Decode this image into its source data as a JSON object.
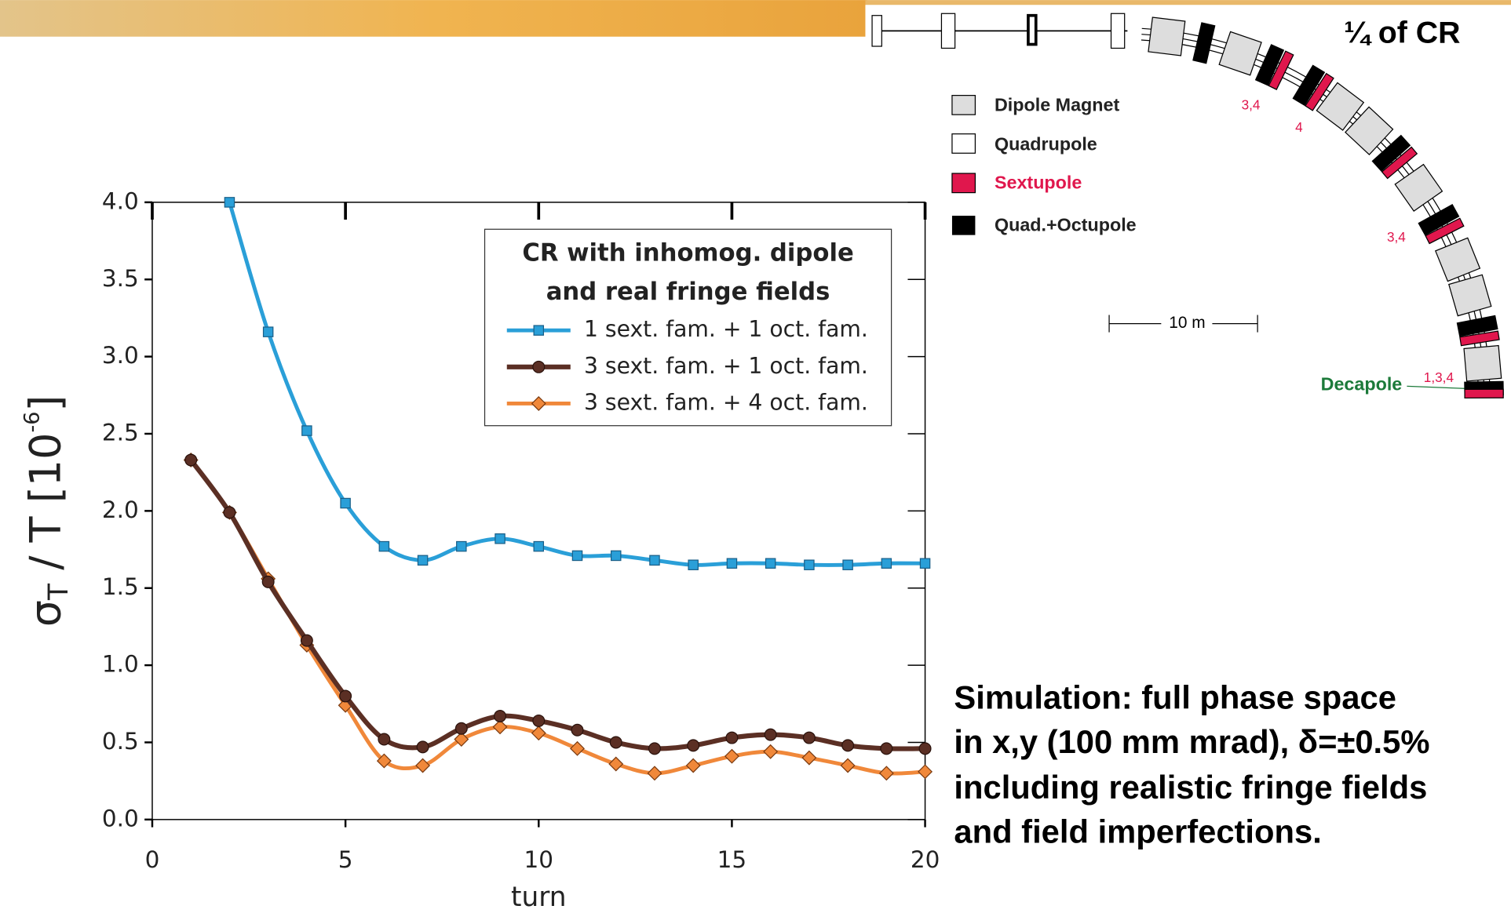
{
  "chart_data": {
    "type": "line",
    "y_label": [
      "σ",
      "T",
      " / T  [10",
      "-6",
      "]"
    ],
    "x_label": "turn",
    "x": [
      1,
      2,
      3,
      4,
      5,
      6,
      7,
      8,
      9,
      10,
      11,
      12,
      13,
      14,
      15,
      16,
      17,
      18,
      19,
      20
    ],
    "series": [
      {
        "name": "1 sext. fam. + 1 oct. fam.",
        "color": "#2a9fd8",
        "marker": "square",
        "values": [
          null,
          4.0,
          3.16,
          2.52,
          2.05,
          1.77,
          1.68,
          1.77,
          1.82,
          1.77,
          1.71,
          1.71,
          1.68,
          1.65,
          1.66,
          1.66,
          1.65,
          1.65,
          1.66,
          1.66
        ]
      },
      {
        "name": "3 sext. fam. + 1 oct. fam.",
        "color": "#5b2f24",
        "marker": "circle",
        "values": [
          2.33,
          1.99,
          1.54,
          1.16,
          0.8,
          0.52,
          0.47,
          0.59,
          0.67,
          0.64,
          0.58,
          0.5,
          0.46,
          0.48,
          0.53,
          0.55,
          0.53,
          0.48,
          0.46,
          0.46
        ]
      },
      {
        "name": "3 sext. fam. + 4 oct. fam.",
        "color": "#f0883a",
        "marker": "diamond",
        "values": [
          2.33,
          1.99,
          1.56,
          1.13,
          0.74,
          0.38,
          0.35,
          0.52,
          0.6,
          0.56,
          0.46,
          0.36,
          0.3,
          0.35,
          0.41,
          0.44,
          0.4,
          0.35,
          0.3,
          0.31
        ]
      }
    ],
    "legend_title": [
      "CR with inhomog. dipole",
      "and real fringe fields"
    ],
    "legend": "upper right",
    "xlim": [
      0,
      20
    ],
    "xticks": [
      0,
      5,
      10,
      15,
      20
    ],
    "ylim": [
      0,
      4
    ],
    "yticks": [
      {
        "value": 0,
        "label": "0.0"
      },
      0.5,
      {
        "value": 1,
        "label": "1.0"
      },
      1.5,
      {
        "value": 2,
        "label": "2.0"
      },
      2.5,
      {
        "value": 3,
        "label": "3.0"
      },
      3.5,
      {
        "value": 4,
        "label": "4.0"
      }
    ]
  },
  "diagram": {
    "title": "¼ of CR",
    "legend": [
      "Dipole Magnet",
      "Quadrupole",
      "Sextupole",
      "Quad.+Octupole"
    ],
    "scale": "10 m",
    "labels": [
      "3,4",
      "4",
      "3,4",
      "1,3,4"
    ],
    "decapole": "Decapole"
  },
  "caption": [
    "Simulation: full phase space",
    "in x,y (100 mm mrad), δ=±0.5%",
    "including realistic fringe fields",
    "and field imperfections."
  ]
}
